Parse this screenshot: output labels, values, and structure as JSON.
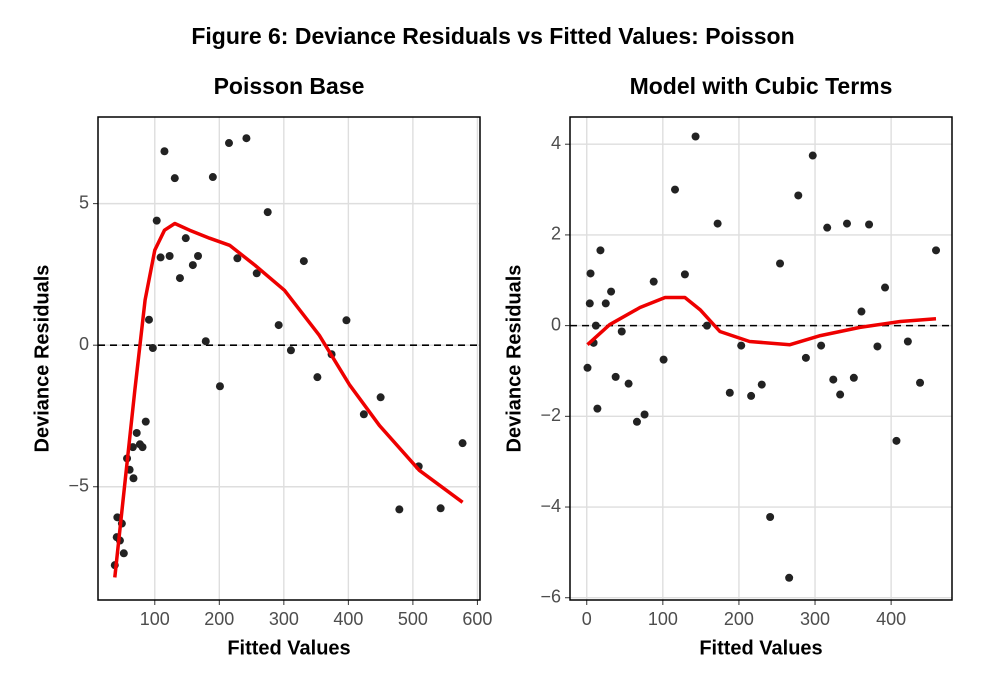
{
  "title": "Figure 6: Deviance Residuals vs Fitted Values: Poisson",
  "chart_data": [
    {
      "type": "scatter",
      "title": "Poisson Base",
      "x_label": "Fitted Values",
      "y_label": "Deviance Residuals",
      "xlim": [
        12,
        604
      ],
      "ylim": [
        -9.0,
        8.06
      ],
      "xticks": [
        100,
        200,
        300,
        400,
        500,
        600
      ],
      "yticks": [
        {
          "value": -5,
          "label": "−5"
        },
        0,
        5
      ],
      "grid": true,
      "hline": 0,
      "point_color": "#222222",
      "smooth_color": "#ee0000",
      "points": {
        "x": [
          38,
          41,
          42,
          46,
          49,
          52,
          57,
          61,
          66,
          67,
          72,
          77,
          81,
          86,
          91,
          97,
          103,
          109,
          115,
          123,
          131,
          139,
          148,
          159,
          167,
          179,
          190,
          201,
          215,
          228,
          242,
          258,
          275,
          292,
          311,
          331,
          352,
          374,
          397,
          424,
          450,
          479,
          509,
          543,
          577
        ],
        "y": [
          -7.77,
          -6.78,
          -6.08,
          -6.9,
          -6.3,
          -7.35,
          -4.0,
          -4.4,
          -3.6,
          -4.7,
          -3.1,
          -3.5,
          -3.6,
          -2.7,
          0.9,
          -0.1,
          4.4,
          3.1,
          6.85,
          3.15,
          5.9,
          2.37,
          3.78,
          2.83,
          3.15,
          0.14,
          5.94,
          -1.45,
          7.14,
          3.07,
          7.31,
          2.54,
          4.7,
          0.71,
          -0.18,
          2.97,
          -1.13,
          -0.32,
          0.88,
          -2.44,
          -1.84,
          -5.8,
          -4.28,
          -5.76,
          -3.46
        ]
      },
      "smooth": {
        "x": [
          38,
          54,
          69,
          85,
          100,
          115,
          131,
          154,
          185,
          216,
          255,
          301,
          355,
          402,
          448,
          510,
          577
        ],
        "y": [
          -8.2,
          -4.8,
          -1.6,
          1.6,
          3.36,
          4.06,
          4.3,
          4.06,
          3.78,
          3.53,
          2.83,
          1.94,
          0.35,
          -1.41,
          -2.83,
          -4.42,
          -5.55
        ]
      }
    },
    {
      "type": "scatter",
      "title": "Model with Cubic Terms",
      "x_label": "Fitted Values",
      "y_label": "Deviance Residuals",
      "xlim": [
        -22,
        480
      ],
      "ylim": [
        -6.05,
        4.6
      ],
      "xticks": [
        0,
        100,
        200,
        300,
        400
      ],
      "yticks": [
        {
          "value": -6,
          "label": "−6"
        },
        {
          "value": -4,
          "label": "−4"
        },
        {
          "value": -2,
          "label": "−2"
        },
        0,
        2,
        4
      ],
      "grid": true,
      "hline": 0,
      "point_color": "#222222",
      "smooth_color": "#ee0000",
      "points": {
        "x": [
          1,
          4,
          5,
          9,
          12,
          14,
          18,
          25,
          32,
          38,
          46,
          55,
          66,
          76,
          88,
          101,
          116,
          129,
          143,
          158,
          172,
          188,
          203,
          216,
          230,
          241,
          254,
          266,
          278,
          288,
          297,
          308,
          316,
          324,
          333,
          342,
          351,
          361,
          371,
          382,
          392,
          407,
          422,
          438,
          459
        ],
        "y": [
          -0.93,
          0.49,
          1.15,
          -0.38,
          0.0,
          -1.83,
          1.66,
          0.49,
          0.75,
          -1.13,
          -0.13,
          -1.28,
          -2.12,
          -1.96,
          0.97,
          -0.75,
          3.0,
          1.13,
          4.17,
          0.0,
          2.25,
          -1.48,
          -0.44,
          -1.55,
          -1.3,
          -4.22,
          1.37,
          -5.56,
          2.87,
          -0.71,
          3.75,
          -0.44,
          2.16,
          -1.19,
          -1.52,
          2.25,
          -1.15,
          0.31,
          2.23,
          -0.46,
          0.84,
          -2.54,
          -0.35,
          -1.26,
          1.66
        ]
      },
      "smooth": {
        "x": [
          1,
          30,
          70,
          103,
          129,
          149,
          175,
          214,
          267,
          307,
          359,
          412,
          459
        ],
        "y": [
          -0.42,
          0.02,
          0.4,
          0.62,
          0.62,
          0.35,
          -0.13,
          -0.35,
          -0.42,
          -0.22,
          -0.04,
          0.09,
          0.15
        ]
      }
    }
  ]
}
